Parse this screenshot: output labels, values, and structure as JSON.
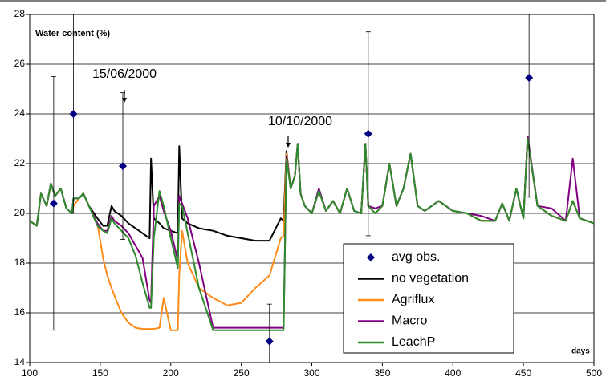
{
  "chart_data": {
    "type": "line",
    "ylabel": "Water content (%)",
    "xlabel": "days",
    "annotations": [
      "15/06/2000",
      "10/10/2000"
    ],
    "xlim": [
      100,
      500
    ],
    "xticks": [
      100,
      150,
      200,
      250,
      300,
      350,
      400,
      450,
      500
    ],
    "ylim": [
      14,
      28
    ],
    "yticks": [
      14,
      16,
      18,
      20,
      22,
      24,
      26,
      28
    ],
    "grid": true,
    "legend": "lower right",
    "x": [
      100,
      105,
      108,
      112,
      115,
      118,
      122,
      126,
      130,
      131,
      135,
      138,
      142,
      148,
      152,
      155,
      158,
      160,
      165,
      170,
      175,
      180,
      185,
      186,
      188,
      192,
      195,
      200,
      205,
      206,
      208,
      212,
      220,
      230,
      240,
      250,
      260,
      270,
      278,
      280,
      282,
      285,
      288,
      290,
      292,
      295,
      300,
      305,
      310,
      315,
      320,
      325,
      330,
      335,
      338,
      340,
      345,
      350,
      355,
      360,
      365,
      370,
      375,
      380,
      390,
      400,
      410,
      420,
      430,
      435,
      440,
      445,
      450,
      453,
      460,
      470,
      480,
      485,
      490,
      500
    ],
    "series": [
      {
        "name": "avg obs.",
        "type": "scatter",
        "color": "#000080",
        "x": [
          117,
          131,
          166,
          270,
          340,
          454
        ],
        "values": [
          20.4,
          24.0,
          21.9,
          14.85,
          23.2,
          25.45
        ],
        "errors": [
          5.1,
          4.0,
          2.95,
          1.5,
          4.1,
          4.8
        ]
      },
      {
        "name": "no vegetation",
        "color": "#000000",
        "values": [
          19.7,
          19.5,
          20.8,
          20.3,
          21.2,
          20.7,
          21.0,
          20.2,
          20.0,
          20.6,
          20.6,
          20.8,
          20.3,
          19.8,
          19.5,
          19.5,
          20.3,
          20.1,
          19.9,
          19.6,
          19.4,
          19.2,
          19.0,
          22.2,
          19.8,
          19.6,
          19.4,
          19.3,
          19.2,
          22.7,
          19.8,
          19.6,
          19.4,
          19.3,
          19.1,
          19.0,
          18.9,
          18.9,
          19.8,
          19.7,
          22.5,
          21.0,
          21.5,
          22.8,
          20.8,
          20.3,
          20.0,
          20.9,
          20.1,
          20.5,
          20.0,
          21.0,
          20.1,
          20.0,
          22.8,
          20.3,
          20.0,
          20.3,
          22.0,
          20.3,
          21.0,
          22.4,
          20.3,
          20.1,
          20.5,
          20.1,
          20.0,
          19.7,
          19.7,
          20.4,
          19.7,
          21.0,
          19.8,
          23.0,
          20.3,
          19.9,
          19.7,
          20.5,
          19.8,
          19.6
        ]
      },
      {
        "name": "Agriflux",
        "color": "#ff8c1a",
        "values": [
          19.7,
          19.5,
          20.8,
          20.3,
          21.2,
          20.7,
          21.0,
          20.2,
          20.0,
          20.3,
          20.6,
          20.8,
          20.3,
          19.6,
          18.2,
          17.5,
          17.0,
          16.7,
          16.0,
          15.6,
          15.4,
          15.35,
          15.35,
          15.35,
          15.35,
          15.4,
          16.6,
          15.3,
          15.3,
          17.5,
          19.3,
          18.0,
          17.0,
          16.6,
          16.3,
          16.4,
          17.0,
          17.5,
          19.0,
          19.1,
          22.4,
          21.0,
          21.5,
          22.8,
          20.8,
          20.3,
          20.0,
          20.9,
          20.1,
          20.5,
          20.0,
          21.0,
          20.1,
          20.0,
          22.8,
          20.3,
          20.0,
          20.3,
          22.0,
          20.3,
          21.0,
          22.4,
          20.3,
          20.1,
          20.5,
          20.1,
          20.0,
          19.7,
          19.7,
          20.4,
          19.7,
          21.0,
          19.8,
          23.0,
          20.3,
          19.9,
          19.7,
          20.5,
          19.8,
          19.6
        ]
      },
      {
        "name": "Macro",
        "color": "#800080",
        "values": [
          19.7,
          19.5,
          20.8,
          20.3,
          21.2,
          20.7,
          21.0,
          20.2,
          20.0,
          20.6,
          20.6,
          20.8,
          20.3,
          19.6,
          19.3,
          19.3,
          19.9,
          19.7,
          19.5,
          19.2,
          18.7,
          18.2,
          16.5,
          16.4,
          20.3,
          20.7,
          20.1,
          19.3,
          18.1,
          20.7,
          20.4,
          19.8,
          18.0,
          15.4,
          15.4,
          15.4,
          15.4,
          15.4,
          15.4,
          15.4,
          22.3,
          21.0,
          21.5,
          22.8,
          20.8,
          20.3,
          20.0,
          21.0,
          20.1,
          20.5,
          20.0,
          21.0,
          20.1,
          20.0,
          22.8,
          20.3,
          20.2,
          20.3,
          22.0,
          20.3,
          21.0,
          22.4,
          20.3,
          20.1,
          20.5,
          20.1,
          20.0,
          19.9,
          19.7,
          20.4,
          19.7,
          21.0,
          19.8,
          23.1,
          20.3,
          20.2,
          19.7,
          22.2,
          19.8,
          19.6
        ]
      },
      {
        "name": "LeachP",
        "color": "#2e8b2e",
        "values": [
          19.7,
          19.5,
          20.8,
          20.3,
          21.2,
          20.7,
          21.0,
          20.2,
          20.0,
          20.6,
          20.6,
          20.8,
          20.3,
          19.5,
          19.3,
          19.2,
          19.8,
          19.6,
          19.3,
          19.0,
          18.3,
          17.2,
          16.2,
          16.2,
          19.0,
          20.9,
          20.3,
          19.0,
          17.8,
          20.4,
          20.3,
          19.2,
          17.0,
          15.3,
          15.3,
          15.3,
          15.3,
          15.3,
          15.3,
          15.3,
          22.2,
          21.0,
          21.5,
          22.8,
          20.8,
          20.3,
          20.0,
          20.9,
          20.1,
          20.5,
          20.0,
          21.0,
          20.1,
          20.0,
          22.8,
          20.3,
          20.0,
          20.3,
          22.0,
          20.3,
          21.0,
          22.4,
          20.3,
          20.1,
          20.5,
          20.1,
          20.0,
          19.7,
          19.7,
          20.4,
          19.7,
          21.0,
          19.8,
          23.0,
          20.3,
          19.9,
          19.7,
          20.5,
          19.8,
          19.6
        ]
      }
    ]
  }
}
